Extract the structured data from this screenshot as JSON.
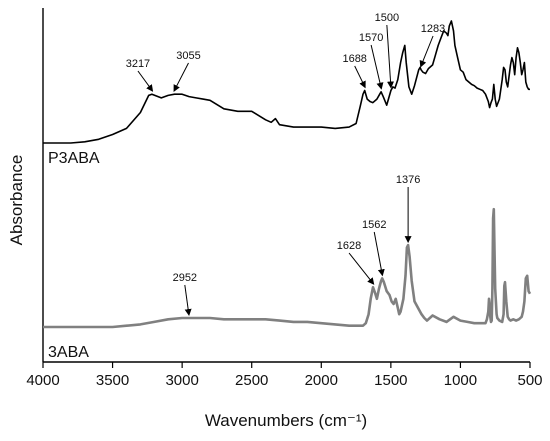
{
  "chart_data": {
    "type": "line",
    "title": "",
    "xlabel": "Wavenumbers (cm⁻¹)",
    "ylabel": "Absorbance",
    "xlim": [
      4000,
      500
    ],
    "x_reversed": true,
    "xticks": [
      "4000",
      "3500",
      "3000",
      "2500",
      "2000",
      "1500",
      "1000",
      "500"
    ],
    "grid": false,
    "legend": "none",
    "series": [
      {
        "name": "P3ABA",
        "color": "#000000",
        "x": [
          4000,
          3800,
          3700,
          3600,
          3500,
          3400,
          3300,
          3240,
          3217,
          3150,
          3100,
          3055,
          3000,
          2950,
          2900,
          2850,
          2800,
          2700,
          2600,
          2500,
          2400,
          2360,
          2330,
          2300,
          2200,
          2100,
          2000,
          1900,
          1800,
          1750,
          1720,
          1700,
          1688,
          1670,
          1650,
          1630,
          1600,
          1580,
          1570,
          1555,
          1530,
          1515,
          1500,
          1485,
          1470,
          1450,
          1430,
          1415,
          1400,
          1390,
          1370,
          1350,
          1330,
          1300,
          1290,
          1283,
          1270,
          1250,
          1230,
          1200,
          1180,
          1160,
          1140,
          1120,
          1100,
          1090,
          1080,
          1065,
          1050,
          1040,
          1020,
          1000,
          980,
          960,
          940,
          920,
          900,
          880,
          860,
          840,
          820,
          800,
          790,
          780,
          770,
          760,
          750,
          740,
          720,
          700,
          690,
          680,
          670,
          660,
          650,
          640,
          630,
          620,
          610,
          600,
          590,
          580,
          570,
          560,
          550,
          540,
          530,
          520,
          510,
          500
        ],
        "values": [
          0.0,
          0.0,
          0.01,
          0.03,
          0.07,
          0.12,
          0.25,
          0.39,
          0.4,
          0.37,
          0.39,
          0.4,
          0.4,
          0.38,
          0.37,
          0.36,
          0.35,
          0.28,
          0.26,
          0.26,
          0.19,
          0.17,
          0.2,
          0.15,
          0.13,
          0.13,
          0.13,
          0.12,
          0.13,
          0.16,
          0.3,
          0.4,
          0.43,
          0.36,
          0.34,
          0.33,
          0.36,
          0.4,
          0.42,
          0.38,
          0.31,
          0.37,
          0.43,
          0.46,
          0.45,
          0.52,
          0.66,
          0.74,
          0.8,
          0.66,
          0.46,
          0.4,
          0.47,
          0.6,
          0.62,
          0.6,
          0.58,
          0.57,
          0.61,
          0.64,
          0.72,
          0.8,
          0.86,
          0.92,
          0.9,
          0.88,
          0.96,
          1.0,
          0.92,
          0.8,
          0.7,
          0.6,
          0.58,
          0.52,
          0.5,
          0.48,
          0.47,
          0.45,
          0.44,
          0.43,
          0.4,
          0.34,
          0.29,
          0.33,
          0.36,
          0.48,
          0.36,
          0.3,
          0.36,
          0.52,
          0.62,
          0.6,
          0.5,
          0.46,
          0.55,
          0.64,
          0.7,
          0.66,
          0.56,
          0.7,
          0.78,
          0.74,
          0.66,
          0.56,
          0.6,
          0.66,
          0.5,
          0.46,
          0.44,
          0.44
        ]
      },
      {
        "name": "3ABA",
        "color": "#808080",
        "x": [
          4000,
          3800,
          3700,
          3600,
          3500,
          3400,
          3300,
          3200,
          3100,
          3000,
          2952,
          2900,
          2800,
          2700,
          2600,
          2500,
          2400,
          2300,
          2200,
          2100,
          2000,
          1900,
          1800,
          1750,
          1700,
          1680,
          1660,
          1645,
          1628,
          1615,
          1600,
          1585,
          1570,
          1562,
          1550,
          1530,
          1510,
          1495,
          1480,
          1465,
          1450,
          1440,
          1430,
          1410,
          1395,
          1385,
          1376,
          1365,
          1350,
          1330,
          1300,
          1280,
          1260,
          1240,
          1200,
          1150,
          1100,
          1050,
          1000,
          950,
          900,
          850,
          820,
          810,
          800,
          795,
          790,
          785,
          780,
          775,
          770,
          765,
          760,
          755,
          750,
          745,
          740,
          735,
          720,
          700,
          690,
          685,
          680,
          670,
          660,
          650,
          640,
          620,
          600,
          580,
          560,
          550,
          540,
          530,
          520,
          510,
          500
        ],
        "values": [
          0.0,
          0.0,
          0.0,
          0.0,
          0.0,
          0.01,
          0.02,
          0.04,
          0.06,
          0.07,
          0.07,
          0.07,
          0.07,
          0.06,
          0.06,
          0.06,
          0.06,
          0.05,
          0.04,
          0.04,
          0.03,
          0.02,
          0.01,
          0.01,
          0.01,
          0.03,
          0.1,
          0.22,
          0.31,
          0.27,
          0.22,
          0.3,
          0.36,
          0.38,
          0.35,
          0.28,
          0.25,
          0.2,
          0.18,
          0.22,
          0.15,
          0.1,
          0.12,
          0.22,
          0.4,
          0.62,
          0.64,
          0.55,
          0.36,
          0.2,
          0.14,
          0.1,
          0.07,
          0.05,
          0.09,
          0.06,
          0.04,
          0.08,
          0.05,
          0.04,
          0.03,
          0.03,
          0.03,
          0.06,
          0.12,
          0.22,
          0.18,
          0.08,
          0.04,
          0.05,
          0.3,
          0.85,
          0.92,
          0.6,
          0.3,
          0.2,
          0.1,
          0.07,
          0.05,
          0.04,
          0.1,
          0.32,
          0.35,
          0.2,
          0.08,
          0.06,
          0.05,
          0.06,
          0.05,
          0.06,
          0.08,
          0.12,
          0.2,
          0.38,
          0.4,
          0.28,
          0.26
        ]
      }
    ],
    "annotations": [
      {
        "series": "P3ABA",
        "text": "3217",
        "x": 3217
      },
      {
        "series": "P3ABA",
        "text": "3055",
        "x": 3055
      },
      {
        "series": "P3ABA",
        "text": "1688",
        "x": 1688
      },
      {
        "series": "P3ABA",
        "text": "1570",
        "x": 1570
      },
      {
        "series": "P3ABA",
        "text": "1500",
        "x": 1500
      },
      {
        "series": "P3ABA",
        "text": "1283",
        "x": 1283
      },
      {
        "series": "3ABA",
        "text": "2952",
        "x": 2952
      },
      {
        "series": "3ABA",
        "text": "1628",
        "x": 1628
      },
      {
        "series": "3ABA",
        "text": "1562",
        "x": 1562
      },
      {
        "series": "3ABA",
        "text": "1376",
        "x": 1376
      }
    ]
  }
}
